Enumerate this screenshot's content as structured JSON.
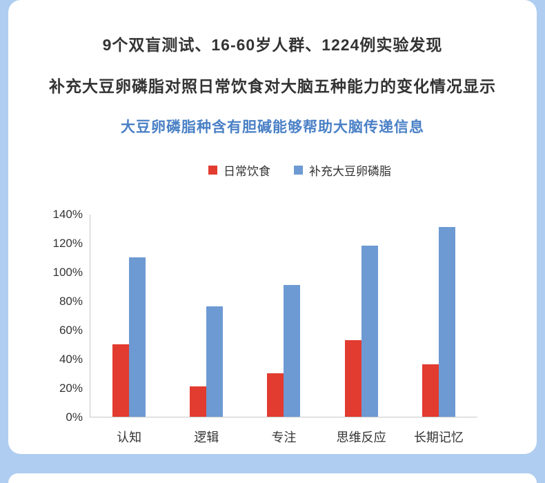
{
  "page": {
    "background_color": "#aecdf0",
    "panel_color": "#ffffff"
  },
  "header": {
    "line1": "9个双盲测试、16-60岁人群、1224例实验发现",
    "line2": "补充大豆卵磷脂对照日常饮食对大脑五种能力的变化情况显示",
    "highlight": "大豆卵磷脂种含有胆碱能够帮助大脑传递信息",
    "highlight_color": "#4a80c6",
    "title_color": "#333333"
  },
  "legend": {
    "items": [
      {
        "label": "日常饮食",
        "color": "#e23b30"
      },
      {
        "label": "补充大豆卵磷脂",
        "color": "#6d9ad3"
      }
    ]
  },
  "chart_data": {
    "type": "bar",
    "categories": [
      "认知",
      "逻辑",
      "专注",
      "思维反应",
      "长期记忆"
    ],
    "series": [
      {
        "name": "日常饮食",
        "color": "#e23b30",
        "values": [
          50,
          21,
          30,
          53,
          36
        ]
      },
      {
        "name": "补充大豆卵磷脂",
        "color": "#6d9ad3",
        "values": [
          110,
          76,
          91,
          118,
          131
        ]
      }
    ],
    "title": "",
    "xlabel": "",
    "ylabel": "",
    "ylim": [
      0,
      140
    ],
    "ytick_step": 20,
    "ytick_suffix": "%",
    "grid": false,
    "legend_position": "top"
  }
}
